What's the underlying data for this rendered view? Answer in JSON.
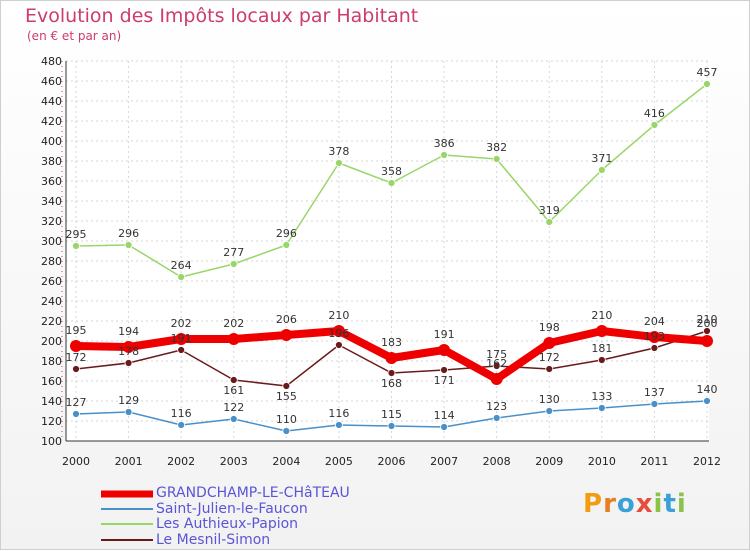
{
  "title": "Evolution des Impôts locaux par Habitant",
  "subtitle": "(en € et par an)",
  "logo": {
    "letters": [
      "P",
      "r",
      "o",
      "x",
      "i",
      "t",
      "i"
    ],
    "colors": [
      "#f39c12",
      "#e67e22",
      "#3aa0d8",
      "#e74c3c",
      "#8bc34a",
      "#3aa0d8",
      "#8bc34a"
    ]
  },
  "chart_data": {
    "type": "line",
    "x": [
      2000,
      2001,
      2002,
      2003,
      2004,
      2005,
      2006,
      2007,
      2008,
      2009,
      2010,
      2011,
      2012
    ],
    "ylim": [
      100,
      480
    ],
    "yticks": [
      100,
      120,
      140,
      160,
      180,
      200,
      220,
      240,
      260,
      280,
      300,
      320,
      340,
      360,
      380,
      400,
      420,
      440,
      460,
      480
    ],
    "grid": true,
    "legend_position": "bottom-left",
    "series": [
      {
        "name": "GRANDCHAMP-LE-CHâTEAU",
        "color": "#ee0000",
        "values": [
          195,
          194,
          202,
          202,
          206,
          210,
          183,
          191,
          162,
          198,
          210,
          204,
          200
        ]
      },
      {
        "name": "Saint-Julien-le-Faucon",
        "color": "#4a90c8",
        "values": [
          127,
          129,
          116,
          122,
          110,
          116,
          115,
          114,
          123,
          130,
          133,
          137,
          140
        ]
      },
      {
        "name": "Les Authieux-Papion",
        "color": "#99d66a",
        "values": [
          295,
          296,
          264,
          277,
          296,
          378,
          358,
          386,
          382,
          319,
          371,
          416,
          457
        ]
      },
      {
        "name": "Le Mesnil-Simon",
        "color": "#6b1a1a",
        "values": [
          172,
          178,
          191,
          161,
          155,
          196,
          168,
          171,
          175,
          172,
          181,
          193,
          210
        ]
      }
    ]
  }
}
